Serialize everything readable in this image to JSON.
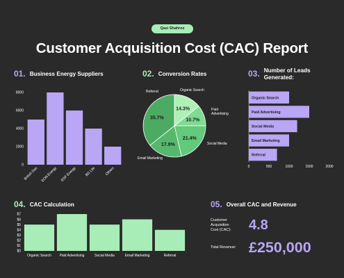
{
  "header": {
    "author": "Qazi Shahroz",
    "title": "Customer Acquisition Cost (CAC) Report"
  },
  "sections": [
    {
      "number": "01.",
      "title": "Business Energy Suppliers"
    },
    {
      "number": "02.",
      "title": "Conversion Rates"
    },
    {
      "number": "03.",
      "title": "Number of Leads Generated:"
    },
    {
      "number": "04.",
      "title": "CAC Calculation"
    },
    {
      "number": "05.",
      "title": "Overall CAC and Revenue"
    }
  ],
  "colors": {
    "background": "#2a2a2a",
    "purple": "#b9a6f4",
    "green": "#a8ecb8",
    "pie_shades": [
      "#aef0b6",
      "#7fdb92",
      "#63c97b",
      "#55b86c",
      "#4caa63"
    ]
  },
  "chart_data": [
    {
      "type": "bar",
      "orientation": "vertical",
      "categories": [
        "British Gas",
        "EON Energy",
        "EDF Energy",
        "BG Lite",
        "Others"
      ],
      "values": [
        5000,
        8000,
        6000,
        4000,
        2000
      ],
      "ylim": [
        0,
        8000
      ],
      "yticks": [
        "0",
        "2000",
        "4000",
        "6000",
        "8000"
      ],
      "color": "#b9a6f4"
    },
    {
      "type": "pie",
      "labels": [
        "Organic Search",
        "Paid Advertising",
        "Social Media",
        "Email Marketing",
        "Referral"
      ],
      "values": [
        14.3,
        10.7,
        21.4,
        17.9,
        35.7
      ],
      "value_labels": [
        "14.3%",
        "10.7%",
        "21.4%",
        "17.9%",
        "35.7%"
      ]
    },
    {
      "type": "bar",
      "orientation": "horizontal",
      "categories": [
        "Organic Search",
        "Paid Advertising",
        "Social Media",
        "Email Marketing",
        "Referral"
      ],
      "values": [
        1000,
        1500,
        1200,
        1000,
        700
      ],
      "xlim": [
        0,
        2000
      ],
      "xticks": [
        "0",
        "500",
        "1000",
        "1500",
        "2000"
      ],
      "color": "#b9a6f4"
    },
    {
      "type": "bar",
      "orientation": "vertical",
      "categories": [
        "Organic Search",
        "Paid Advertising",
        "Social Media",
        "Email Marketing",
        "Referral"
      ],
      "values": [
        5,
        7,
        5,
        6,
        4
      ],
      "ylim": [
        0,
        7
      ],
      "yticks": [
        "$0",
        "$1",
        "$2",
        "$3",
        "$4",
        "$5",
        "$6",
        "$7"
      ],
      "color": "#a8ecb8"
    }
  ],
  "summary": {
    "cac_label_lines": [
      "Customer",
      "Acquisition",
      "Cost (CAC):"
    ],
    "cac_value": "4.8",
    "revenue_label": "Total Revenue:",
    "revenue_value": "£250,000"
  }
}
